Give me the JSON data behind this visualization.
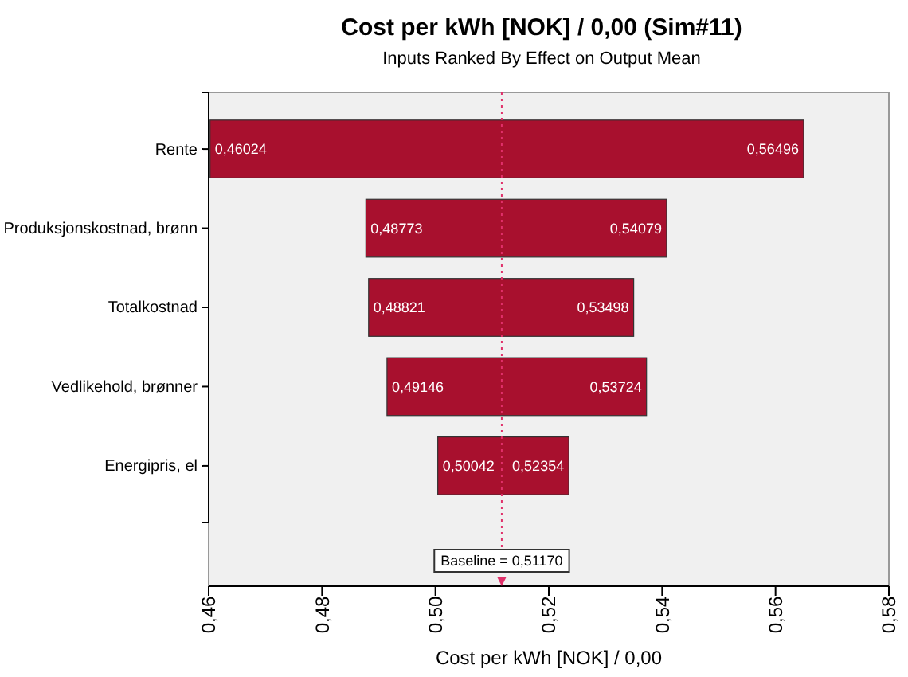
{
  "chart_data": {
    "type": "bar",
    "orientation": "horizontal",
    "title": "Cost per kWh [NOK] / 0,00 (Sim#11)",
    "subtitle": "Inputs Ranked By Effect on Output Mean",
    "xlabel": "Cost per kWh [NOK] / 0,00",
    "categories": [
      "Rente",
      "Produksjonskostnad, brønn",
      "Totalkostnad",
      "Vedlikehold, brønner",
      "Energipris, el"
    ],
    "base": [
      0.46024,
      0.48773,
      0.48821,
      0.49146,
      0.50042
    ],
    "values": [
      0.10472,
      0.05306,
      0.04677,
      0.04578,
      0.02312
    ],
    "color": "#a8102e",
    "xlim": [
      0.46,
      0.58
    ],
    "xticks": [
      {
        "value": 0.46,
        "label": "0,46"
      },
      {
        "value": 0.48,
        "label": "0,48"
      },
      {
        "value": 0.5,
        "label": "0,50"
      },
      {
        "value": 0.52,
        "label": "0,52"
      },
      {
        "value": 0.54,
        "label": "0,54"
      },
      {
        "value": 0.56,
        "label": "0,56"
      },
      {
        "value": 0.58,
        "label": "0,58"
      }
    ],
    "ref_lines": [
      {
        "axis": "x",
        "value": 0.5117,
        "label": "Baseline = 0,51170",
        "color": "#e0306a",
        "line_style": "dotted"
      }
    ],
    "annotations": [
      {
        "text": "0,46024",
        "x": 0.46024,
        "y": "Rente"
      },
      {
        "text": "0,56496",
        "x": 0.56496,
        "y": "Rente"
      },
      {
        "text": "0,48773",
        "x": 0.48773,
        "y": "Produksjonskostnad, brønn"
      },
      {
        "text": "0,54079",
        "x": 0.54079,
        "y": "Produksjonskostnad, brønn"
      },
      {
        "text": "0,48821",
        "x": 0.48821,
        "y": "Totalkostnad"
      },
      {
        "text": "0,53498",
        "x": 0.53498,
        "y": "Totalkostnad"
      },
      {
        "text": "0,49146",
        "x": 0.49146,
        "y": "Vedlikehold, brønner"
      },
      {
        "text": "0,53724",
        "x": 0.53724,
        "y": "Vedlikehold, brønner"
      },
      {
        "text": "0,50042",
        "x": 0.50042,
        "y": "Energipris, el"
      },
      {
        "text": "0,52354",
        "x": 0.52354,
        "y": "Energipris, el"
      }
    ]
  }
}
